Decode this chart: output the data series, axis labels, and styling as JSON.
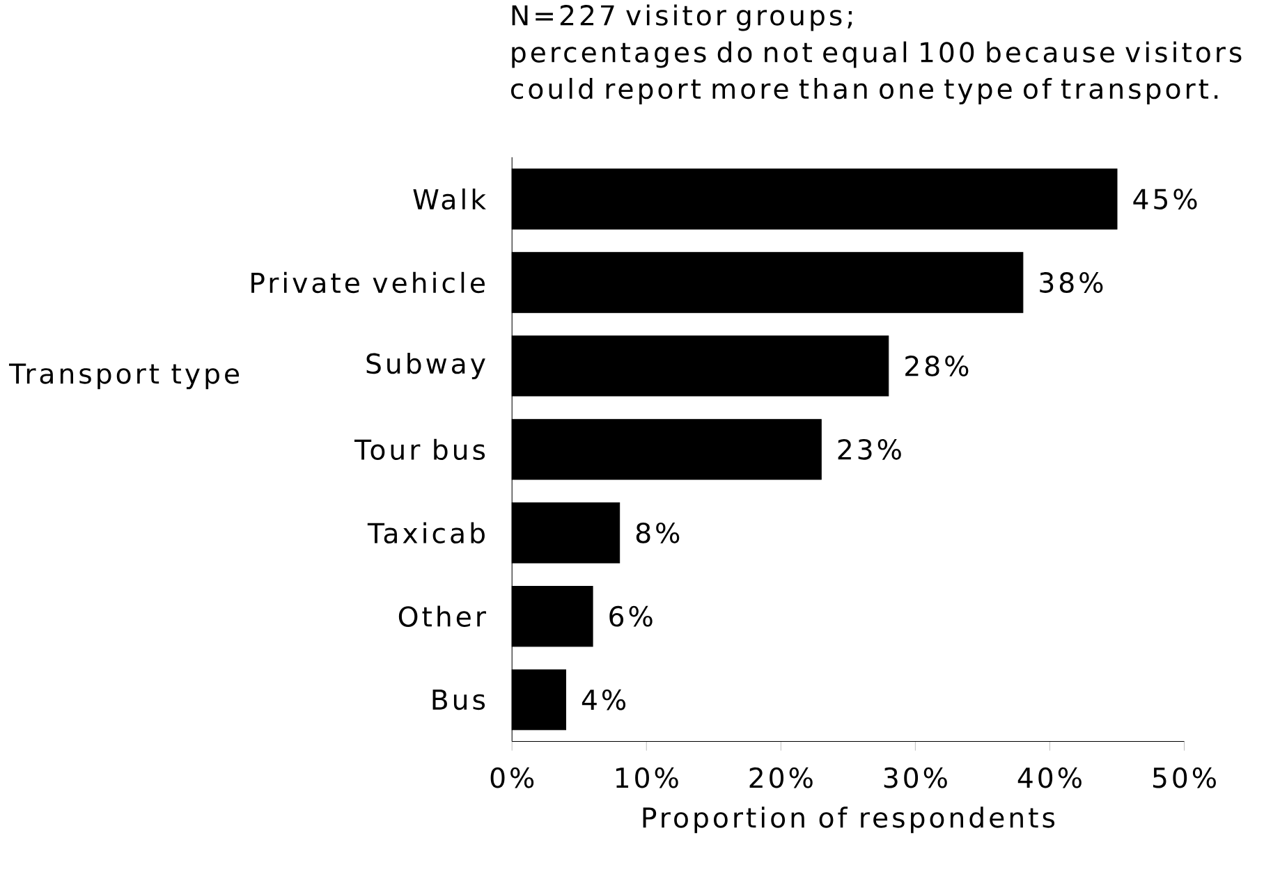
{
  "chart_data": {
    "type": "bar",
    "orientation": "horizontal",
    "categories": [
      "Walk",
      "Private vehicle",
      "Subway",
      "Tour bus",
      "Taxicab",
      "Other",
      "Bus"
    ],
    "values": [
      45,
      38,
      28,
      23,
      8,
      6,
      4
    ],
    "value_labels": [
      "45%",
      "38%",
      "28%",
      "23%",
      "8%",
      "6%",
      "4%"
    ],
    "color": "#000000",
    "xlim": [
      0,
      50
    ],
    "xticks": [
      {
        "value": 0,
        "label": "0%"
      },
      {
        "value": 10,
        "label": "10%"
      },
      {
        "value": 20,
        "label": "20%"
      },
      {
        "value": 30,
        "label": "30%"
      },
      {
        "value": 40,
        "label": "40%"
      },
      {
        "value": 50,
        "label": "50%"
      }
    ],
    "xlabel": "Proportion of respondents",
    "ylabel": "Transport type",
    "annotations": [
      "N=227 visitor groups;",
      "percentages do not equal 100 because visitors could report more than one type of transport."
    ],
    "grid": false
  }
}
